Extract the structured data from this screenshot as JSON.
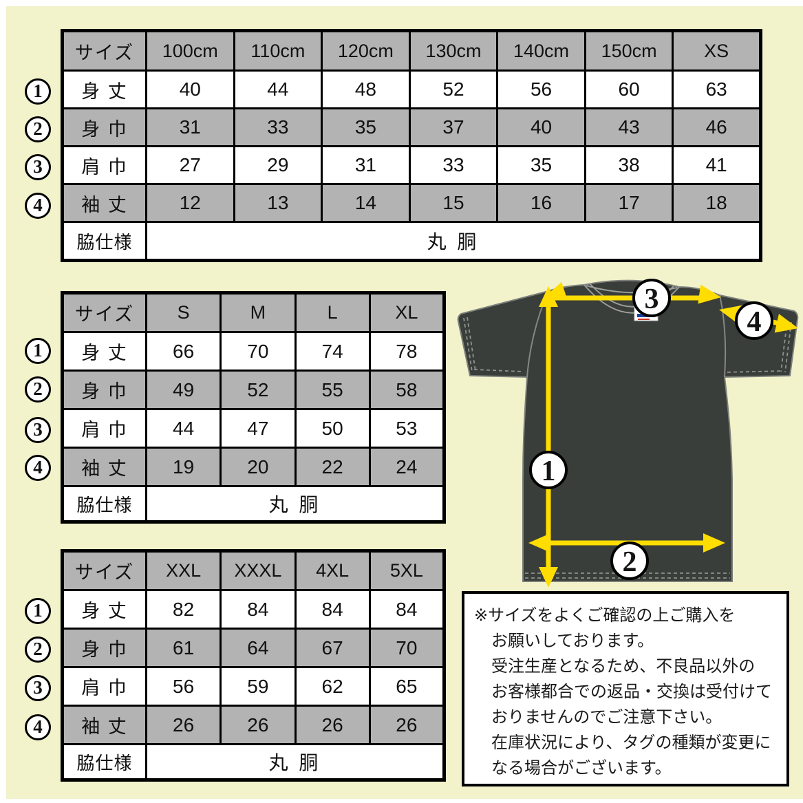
{
  "colors": {
    "background": "#f2f3cb",
    "frame": "#ffffff",
    "table_shade": "#b3b3b3",
    "cell_white": "#ffffff",
    "border": "#000000",
    "shirt": "#3a3e3a",
    "arrow_yellow": "#ffdd00",
    "seam_gray": "#8f928d"
  },
  "labels": {
    "size_header": "サイズ",
    "measurements": [
      "身 丈",
      "身 巾",
      "肩 巾",
      "袖 丈"
    ],
    "side_spec": "脇仕様",
    "side_spec_value": "丸 胴"
  },
  "markers": [
    "1",
    "2",
    "3",
    "4"
  ],
  "tables": [
    {
      "name": "kids-sizes",
      "columns": [
        "100cm",
        "110cm",
        "120cm",
        "130cm",
        "140cm",
        "150cm",
        "XS"
      ],
      "rows": [
        [
          "40",
          "44",
          "48",
          "52",
          "56",
          "60",
          "63"
        ],
        [
          "31",
          "33",
          "35",
          "37",
          "40",
          "43",
          "46"
        ],
        [
          "27",
          "29",
          "31",
          "33",
          "35",
          "38",
          "41"
        ],
        [
          "12",
          "13",
          "14",
          "15",
          "16",
          "17",
          "18"
        ]
      ]
    },
    {
      "name": "adult-sizes",
      "columns": [
        "S",
        "M",
        "L",
        "XL"
      ],
      "rows": [
        [
          "66",
          "70",
          "74",
          "78"
        ],
        [
          "49",
          "52",
          "55",
          "58"
        ],
        [
          "44",
          "47",
          "50",
          "53"
        ],
        [
          "19",
          "20",
          "22",
          "24"
        ]
      ]
    },
    {
      "name": "plus-sizes",
      "columns": [
        "XXL",
        "XXXL",
        "4XL",
        "5XL"
      ],
      "rows": [
        [
          "82",
          "84",
          "84",
          "84"
        ],
        [
          "61",
          "64",
          "67",
          "70"
        ],
        [
          "56",
          "59",
          "62",
          "65"
        ],
        [
          "26",
          "26",
          "26",
          "26"
        ]
      ]
    }
  ],
  "notice": {
    "lines": [
      "※サイズをよくご確認の上ご購入を",
      "お願いしております。",
      "受注生産となるため、不良品以外の",
      "お客様都合での返品・交換は受付けて",
      "おりませんのでご注意下さい。",
      "在庫状況により、タグの種類が変更に",
      "なる場合がございます。"
    ]
  }
}
